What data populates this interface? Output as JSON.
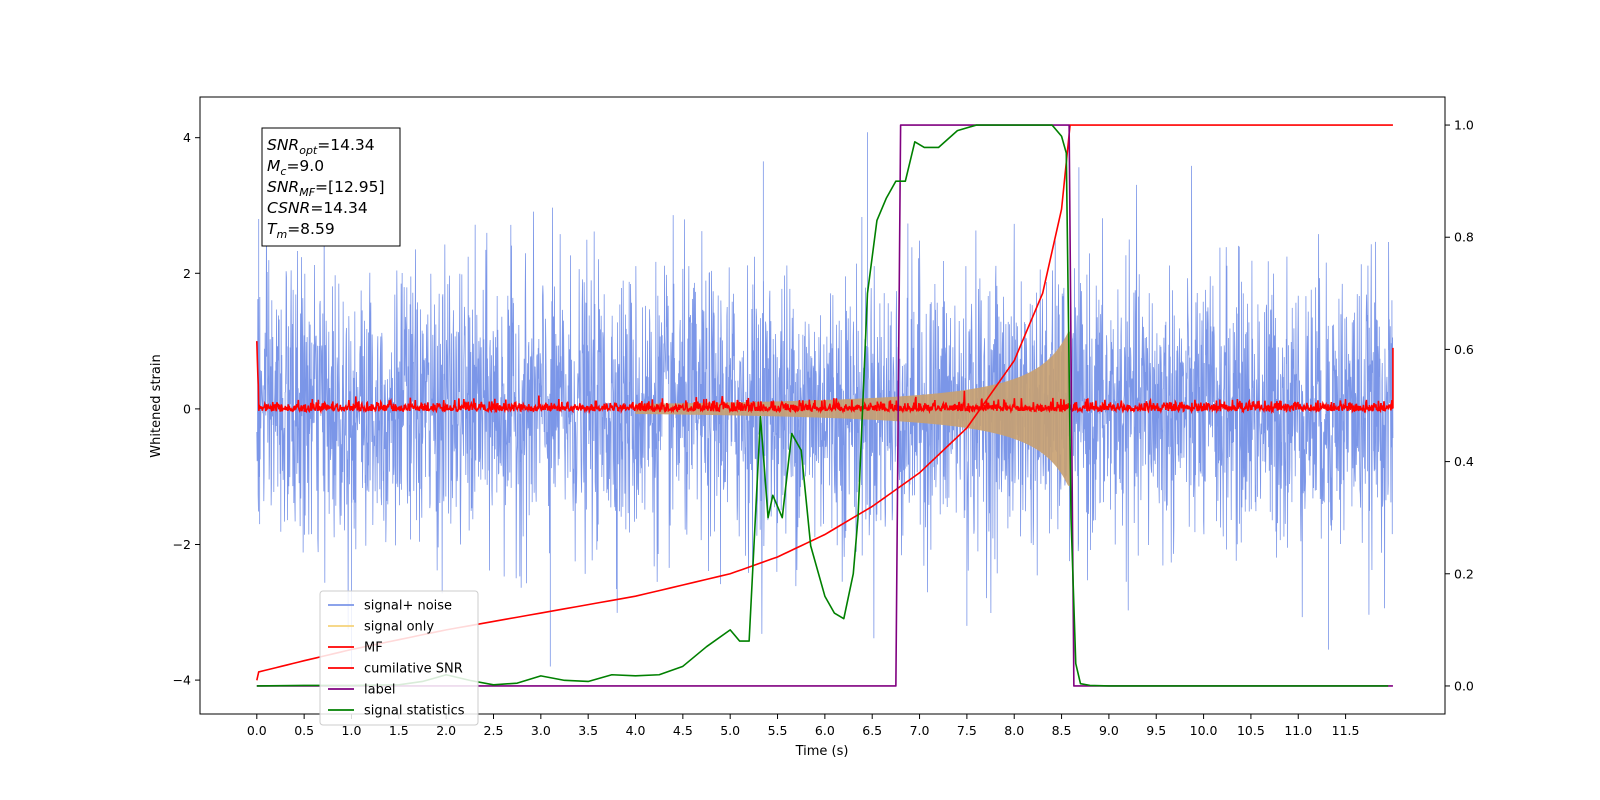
{
  "chart_data": {
    "type": "line",
    "xlabel": "Time (s)",
    "ylabel": "Whitened strain",
    "xlim": [
      -0.6,
      12.55
    ],
    "ylim_left": [
      -4.5,
      4.6
    ],
    "ylim_right": [
      -0.05,
      1.05
    ],
    "x_ticks": [
      "0.0",
      "0.5",
      "1.0",
      "1.5",
      "2.0",
      "2.5",
      "3.0",
      "3.5",
      "4.0",
      "4.5",
      "5.0",
      "5.5",
      "6.0",
      "6.5",
      "7.0",
      "7.5",
      "8.0",
      "8.5",
      "9.0",
      "9.5",
      "10.0",
      "10.5",
      "11.0",
      "11.5"
    ],
    "y_ticks_left": [
      "−4",
      "−2",
      "0",
      "2",
      "4"
    ],
    "y_ticks_right": [
      "0.0",
      "0.2",
      "0.4",
      "0.6",
      "0.8",
      "1.0"
    ],
    "grid": false,
    "legend_position": "lower-left",
    "annotation": [
      {
        "main": "SNR",
        "sub": "opt",
        "rest": "=14.34"
      },
      {
        "main": "M",
        "sub": "c",
        "rest": "=9.0"
      },
      {
        "main": "SNR",
        "sub": "MF",
        "rest": "=[12.95]"
      },
      {
        "main": "CSNR",
        "sub": "",
        "rest": "=14.34"
      },
      {
        "main": "T",
        "sub": "m",
        "rest": "=8.59"
      }
    ],
    "series": [
      {
        "name": "signal+ noise",
        "color": "#7b96e8",
        "axis": "left",
        "style": "noise",
        "x_range": [
          0.0,
          12.0
        ],
        "sigma": 1.0,
        "envelope_peak_time": 8.59,
        "y_extremes": [
          4.08,
          -3.85
        ]
      },
      {
        "name": "signal only",
        "color": "#f5d27a",
        "axis": "left",
        "style": "chirp",
        "x_range": [
          0.0,
          8.59
        ],
        "amplitude_at_merger": 1.2,
        "merger_time": 8.59
      },
      {
        "name": "MF",
        "color": "#ff0000",
        "axis": "left",
        "style": "mf",
        "x_range": [
          0.0,
          12.0
        ],
        "baseline": 0.0,
        "noise_level": 0.05,
        "start_value": 1.0,
        "end_value": 0.9
      },
      {
        "name": "cumilative SNR",
        "color": "#ff0000",
        "axis": "right",
        "x": [
          0.0,
          0.02,
          0.5,
          1.0,
          2.0,
          3.0,
          4.0,
          5.0,
          5.5,
          6.0,
          6.5,
          7.0,
          7.5,
          8.0,
          8.3,
          8.5,
          8.59,
          8.6,
          12.0
        ],
        "y": [
          0.01,
          0.025,
          0.045,
          0.065,
          0.1,
          0.13,
          0.16,
          0.2,
          0.23,
          0.27,
          0.32,
          0.38,
          0.46,
          0.58,
          0.7,
          0.85,
          1.0,
          1.0,
          1.0
        ]
      },
      {
        "name": "label",
        "color": "#800080",
        "axis": "right",
        "x": [
          0.0,
          6.75,
          6.8,
          8.58,
          8.63,
          12.0
        ],
        "y": [
          0.0,
          0.0,
          1.0,
          1.0,
          0.0,
          0.0
        ]
      },
      {
        "name": "signal statistics",
        "color": "#008000",
        "axis": "right",
        "x": [
          0.0,
          0.5,
          1.0,
          1.5,
          1.75,
          1.9,
          2.0,
          2.25,
          2.5,
          2.75,
          3.0,
          3.25,
          3.5,
          3.75,
          4.0,
          4.25,
          4.5,
          4.75,
          5.0,
          5.1,
          5.2,
          5.32,
          5.4,
          5.45,
          5.55,
          5.65,
          5.75,
          5.85,
          6.0,
          6.1,
          6.2,
          6.25,
          6.3,
          6.35,
          6.45,
          6.55,
          6.65,
          6.75,
          6.85,
          6.95,
          7.05,
          7.2,
          7.4,
          7.6,
          7.8,
          8.0,
          8.2,
          8.4,
          8.5,
          8.55,
          8.6,
          8.65,
          8.7,
          8.8,
          9.0,
          10.0,
          11.0,
          11.95
        ],
        "y": [
          0.0,
          0.001,
          0.001,
          0.002,
          0.008,
          0.015,
          0.02,
          0.01,
          0.002,
          0.005,
          0.018,
          0.01,
          0.008,
          0.02,
          0.018,
          0.02,
          0.035,
          0.07,
          0.1,
          0.08,
          0.08,
          0.48,
          0.3,
          0.34,
          0.3,
          0.45,
          0.42,
          0.25,
          0.16,
          0.13,
          0.12,
          0.16,
          0.2,
          0.3,
          0.7,
          0.83,
          0.87,
          0.9,
          0.9,
          0.97,
          0.96,
          0.96,
          0.99,
          1.0,
          1.0,
          1.0,
          1.0,
          1.0,
          0.98,
          0.95,
          0.3,
          0.04,
          0.004,
          0.001,
          0.0,
          0.0,
          0.0,
          0.0
        ]
      }
    ]
  }
}
